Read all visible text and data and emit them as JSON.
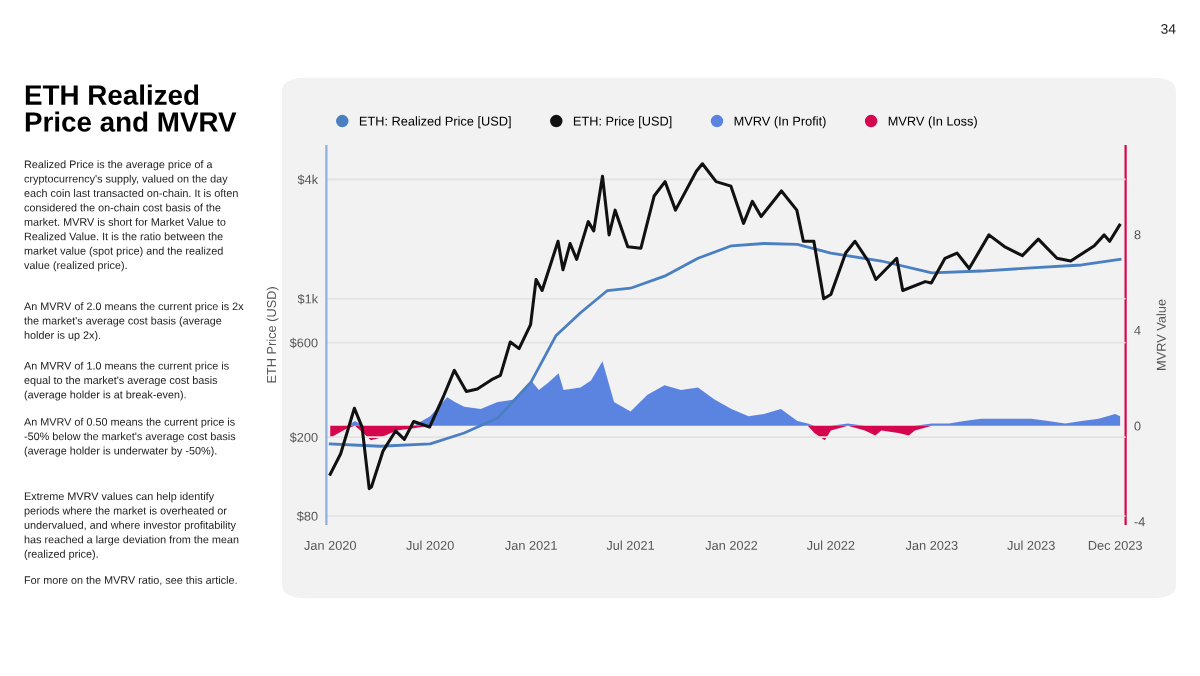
{
  "chart_data": {
    "type": "line",
    "title": "ETH Realized\nPrice and MVRV",
    "annotations": [
      "Realized Price is the average price of a\ncryptocurrency's supply, valued on the day\neach coin last transacted on-chain. It is often\nconsidered the on-chain cost basis of the\nmarket. MVRV is short for Market Value to\nRealized Value. It is the ratio between the\nmarket value (spot price) and the realized\nvalue (realized price).",
      "An MVRV of 2.0 means the current price is 2x\nthe market's average cost basis (average\nholder is up 2x).",
      "An MVRV of 1.0 means the current price is\nequal to the market's average cost basis\n(average holder is at break-even).",
      "An MVRV of 0.50 means the current price is\n-50% below the market's average cost basis\n(average holder is underwater by -50%).",
      "Extreme MVRV values can help identify\nperiods where the market is overheated or\nundervalued, and where investor profitability\nhas reached a large deviation from the mean\n(realized price).",
      "For more on the MVRV ratio, see this article.",
      "34"
    ],
    "ylabel": "ETH Price (USD)",
    "y2label": "MVRV Value",
    "log": "y",
    "grid": "y",
    "legend": "top left",
    "marker": "none",
    "line_style": "solid",
    "xlim": [
      "2019-12-25",
      "2023-12-20"
    ],
    "xticks": [
      {
        "value": "2020-01-01",
        "label": "Jan 2020"
      },
      {
        "value": "2020-07-01",
        "label": "Jul 2020"
      },
      {
        "value": "2021-01-01",
        "label": "Jan 2021"
      },
      {
        "value": "2021-07-01",
        "label": "Jul 2021"
      },
      {
        "value": "2022-01-01",
        "label": "Jan 2022"
      },
      {
        "value": "2022-07-01",
        "label": "Jul 2022"
      },
      {
        "value": "2023-01-01",
        "label": "Jan 2023"
      },
      {
        "value": "2023-07-01",
        "label": "Jul 2023"
      },
      {
        "value": "2023-12-01",
        "label": "Dec 2023"
      }
    ],
    "ylim": [
      73,
      5900
    ],
    "yticks": [
      {
        "value": 80,
        "label": "$80"
      },
      {
        "value": 200,
        "label": "$200"
      },
      {
        "value": 600,
        "label": "$600"
      },
      {
        "value": 1000,
        "label": "$1k"
      },
      {
        "value": 4000,
        "label": "$4k"
      }
    ],
    "y2lim": [
      -4.1,
      11.7
    ],
    "y2ticks": [
      -4,
      0,
      4,
      8
    ],
    "series": [
      {
        "name": "MVRV (In Profit)",
        "type": "area",
        "axis": "y2",
        "color": "#5b84e0",
        "x": [
          "2020-01-01",
          "2020-02-01",
          "2020-02-15",
          "2020-03-01",
          "2020-04-01",
          "2020-05-01",
          "2020-06-01",
          "2020-07-01",
          "2020-08-01",
          "2020-08-15",
          "2020-09-01",
          "2020-10-01",
          "2020-11-01",
          "2020-12-01",
          "2021-01-01",
          "2021-01-15",
          "2021-02-01",
          "2021-02-20",
          "2021-03-01",
          "2021-04-01",
          "2021-04-20",
          "2021-05-11",
          "2021-06-01",
          "2021-07-01",
          "2021-08-01",
          "2021-09-01",
          "2021-10-01",
          "2021-11-01",
          "2021-12-01",
          "2022-01-01",
          "2022-02-01",
          "2022-03-01",
          "2022-04-01",
          "2022-05-01",
          "2022-05-20",
          "2022-06-01",
          "2022-07-01",
          "2022-08-01",
          "2022-09-01",
          "2022-10-01",
          "2022-11-01",
          "2022-12-01",
          "2023-01-01",
          "2023-02-01",
          "2023-03-01",
          "2023-04-01",
          "2023-05-01",
          "2023-06-01",
          "2023-07-01",
          "2023-08-01",
          "2023-09-01",
          "2023-10-01",
          "2023-11-01",
          "2023-12-01",
          "2023-12-10"
        ],
        "values": [
          0,
          0,
          0.2,
          0,
          0,
          0,
          0,
          0.4,
          1.2,
          1.0,
          0.8,
          0.7,
          1.0,
          1.1,
          1.9,
          1.5,
          1.8,
          2.2,
          1.5,
          1.6,
          1.9,
          2.7,
          1.0,
          0.6,
          1.3,
          1.7,
          1.5,
          1.6,
          1.1,
          0.7,
          0.4,
          0.5,
          0.7,
          0.2,
          0.1,
          0,
          0,
          0.1,
          0,
          0,
          0,
          0,
          0.1,
          0.1,
          0.2,
          0.3,
          0.3,
          0.3,
          0.3,
          0.2,
          0.1,
          0.2,
          0.3,
          0.5,
          0.4
        ]
      },
      {
        "name": "MVRV (In Loss)",
        "type": "area",
        "axis": "y2",
        "color": "#d6064e",
        "x": [
          "2020-01-01",
          "2020-02-01",
          "2020-02-15",
          "2020-03-01",
          "2020-03-15",
          "2020-04-01",
          "2020-05-01",
          "2020-06-01",
          "2020-07-01",
          "2022-05-20",
          "2022-06-01",
          "2022-06-20",
          "2022-07-01",
          "2022-08-01",
          "2022-09-01",
          "2022-09-20",
          "2022-10-01",
          "2022-11-01",
          "2022-11-20",
          "2022-12-01",
          "2023-01-01"
        ],
        "values": [
          -0.5,
          -0.1,
          0,
          -0.3,
          -0.6,
          -0.5,
          -0.2,
          -0.1,
          0,
          0,
          -0.3,
          -0.6,
          -0.2,
          0,
          -0.2,
          -0.4,
          -0.2,
          -0.3,
          -0.4,
          -0.2,
          0
        ]
      },
      {
        "name": "ETH: Realized Price [USD]",
        "color": "#4a7fc1",
        "x": [
          "2020-01-01",
          "2020-04-01",
          "2020-07-01",
          "2020-09-01",
          "2020-11-01",
          "2021-01-01",
          "2021-02-15",
          "2021-04-01",
          "2021-05-20",
          "2021-07-01",
          "2021-09-01",
          "2021-11-01",
          "2022-01-01",
          "2022-03-01",
          "2022-05-01",
          "2022-07-01",
          "2022-10-01",
          "2023-01-01",
          "2023-04-01",
          "2023-07-01",
          "2023-10-01",
          "2023-12-10"
        ],
        "values": [
          185,
          180,
          185,
          210,
          250,
          380,
          650,
          850,
          1100,
          1130,
          1300,
          1600,
          1850,
          1900,
          1880,
          1700,
          1550,
          1350,
          1380,
          1430,
          1480,
          1580
        ]
      },
      {
        "name": "ETH: Price [USD]",
        "color": "#111111",
        "x": [
          "2020-01-01",
          "2020-01-20",
          "2020-02-14",
          "2020-02-28",
          "2020-03-12",
          "2020-03-16",
          "2020-04-06",
          "2020-04-29",
          "2020-05-15",
          "2020-06-01",
          "2020-06-30",
          "2020-07-25",
          "2020-08-14",
          "2020-09-05",
          "2020-09-25",
          "2020-10-21",
          "2020-11-06",
          "2020-11-24",
          "2020-12-10",
          "2020-12-31",
          "2021-01-10",
          "2021-01-21",
          "2021-02-19",
          "2021-02-28",
          "2021-03-13",
          "2021-03-25",
          "2021-04-15",
          "2021-04-25",
          "2021-05-11",
          "2021-05-23",
          "2021-06-03",
          "2021-06-26",
          "2021-07-20",
          "2021-08-13",
          "2021-09-02",
          "2021-09-21",
          "2021-10-29",
          "2021-11-09",
          "2021-12-04",
          "2021-12-31",
          "2022-01-23",
          "2022-02-08",
          "2022-02-24",
          "2022-04-02",
          "2022-04-30",
          "2022-05-12",
          "2022-05-31",
          "2022-06-18",
          "2022-07-01",
          "2022-07-28",
          "2022-08-14",
          "2022-09-07",
          "2022-09-21",
          "2022-10-29",
          "2022-11-09",
          "2022-12-20",
          "2022-12-31",
          "2023-01-25",
          "2023-02-16",
          "2023-03-10",
          "2023-04-15",
          "2023-05-15",
          "2023-06-15",
          "2023-07-14",
          "2023-08-17",
          "2023-09-11",
          "2023-10-24",
          "2023-11-11",
          "2023-11-21",
          "2023-12-09"
        ],
        "values": [
          130,
          165,
          280,
          225,
          110,
          112,
          170,
          215,
          195,
          240,
          225,
          320,
          435,
          340,
          350,
          390,
          410,
          605,
          560,
          740,
          1250,
          1100,
          1950,
          1400,
          1900,
          1580,
          2450,
          2200,
          4150,
          2100,
          2800,
          1830,
          1800,
          3300,
          3900,
          2800,
          4400,
          4800,
          3900,
          3700,
          2400,
          3100,
          2600,
          3500,
          2800,
          1950,
          1950,
          1000,
          1050,
          1700,
          1950,
          1550,
          1250,
          1600,
          1100,
          1220,
          1200,
          1600,
          1700,
          1420,
          2100,
          1820,
          1650,
          2000,
          1600,
          1550,
          1850,
          2100,
          1950,
          2350
        ]
      }
    ]
  }
}
